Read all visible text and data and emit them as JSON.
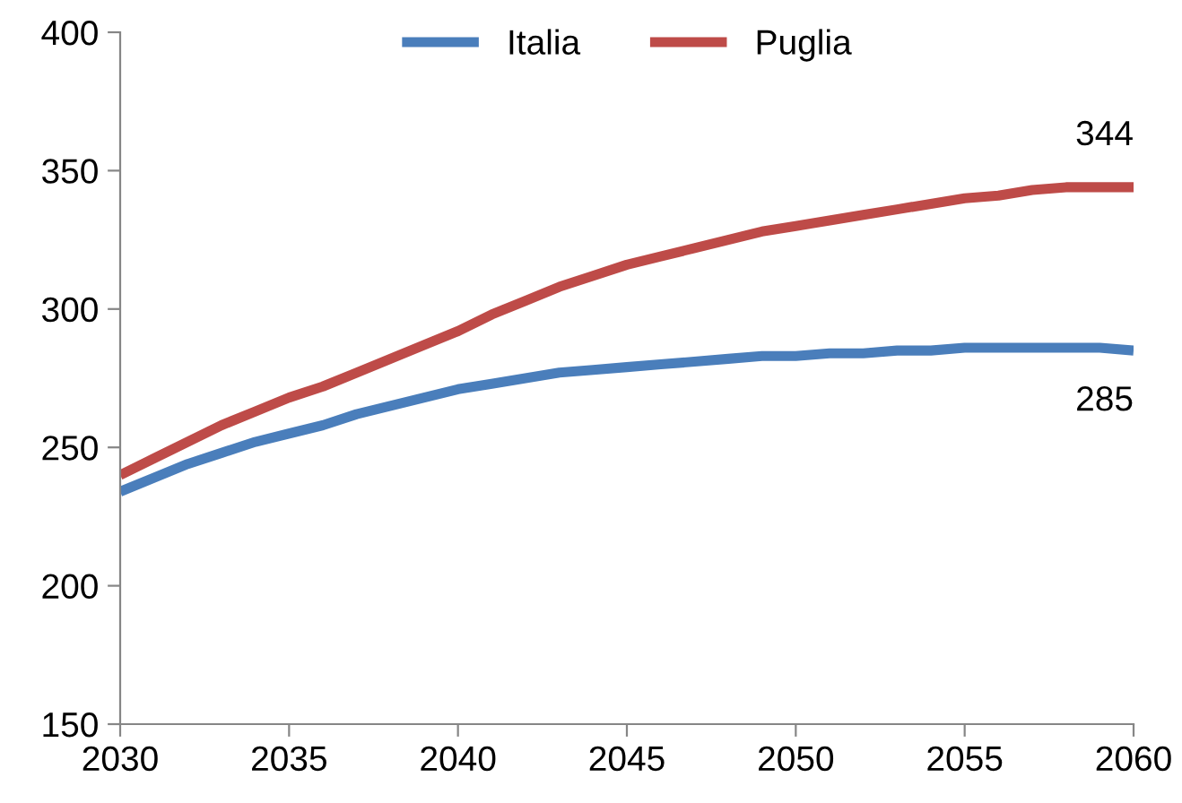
{
  "chart_data": {
    "type": "line",
    "x": [
      2030,
      2031,
      2032,
      2033,
      2034,
      2035,
      2036,
      2037,
      2038,
      2039,
      2040,
      2041,
      2042,
      2043,
      2044,
      2045,
      2046,
      2047,
      2048,
      2049,
      2050,
      2051,
      2052,
      2053,
      2054,
      2055,
      2056,
      2057,
      2058,
      2059,
      2060
    ],
    "series": [
      {
        "name": "Italia",
        "color": "#4a7ebb",
        "values": [
          234,
          239,
          244,
          248,
          252,
          255,
          258,
          262,
          265,
          268,
          271,
          273,
          275,
          277,
          278,
          279,
          280,
          281,
          282,
          283,
          283,
          284,
          284,
          285,
          285,
          286,
          286,
          286,
          286,
          286,
          285
        ],
        "value_labels": [
          null,
          null,
          null,
          null,
          null,
          null,
          null,
          null,
          null,
          null,
          null,
          null,
          null,
          null,
          null,
          null,
          null,
          null,
          null,
          null,
          null,
          null,
          null,
          null,
          null,
          null,
          null,
          null,
          null,
          null,
          "285"
        ]
      },
      {
        "name": "Puglia",
        "color": "#be4b48",
        "values": [
          240,
          246,
          252,
          258,
          263,
          268,
          272,
          277,
          282,
          287,
          292,
          298,
          303,
          308,
          312,
          316,
          319,
          322,
          325,
          328,
          330,
          332,
          334,
          336,
          338,
          340,
          341,
          343,
          344,
          344,
          344
        ],
        "value_labels": [
          null,
          null,
          null,
          null,
          null,
          null,
          null,
          null,
          null,
          null,
          null,
          null,
          null,
          null,
          null,
          null,
          null,
          null,
          null,
          null,
          null,
          null,
          null,
          null,
          null,
          null,
          null,
          null,
          null,
          null,
          "344"
        ]
      }
    ],
    "xlim": [
      2030,
      2060
    ],
    "xticks": [
      2030,
      2035,
      2040,
      2045,
      2050,
      2055,
      2060
    ],
    "ylim": [
      150,
      400
    ],
    "yticks": [
      150,
      200,
      250,
      300,
      350,
      400
    ],
    "grid": false,
    "legend": "top",
    "marker": "none",
    "line_style": "solid"
  }
}
